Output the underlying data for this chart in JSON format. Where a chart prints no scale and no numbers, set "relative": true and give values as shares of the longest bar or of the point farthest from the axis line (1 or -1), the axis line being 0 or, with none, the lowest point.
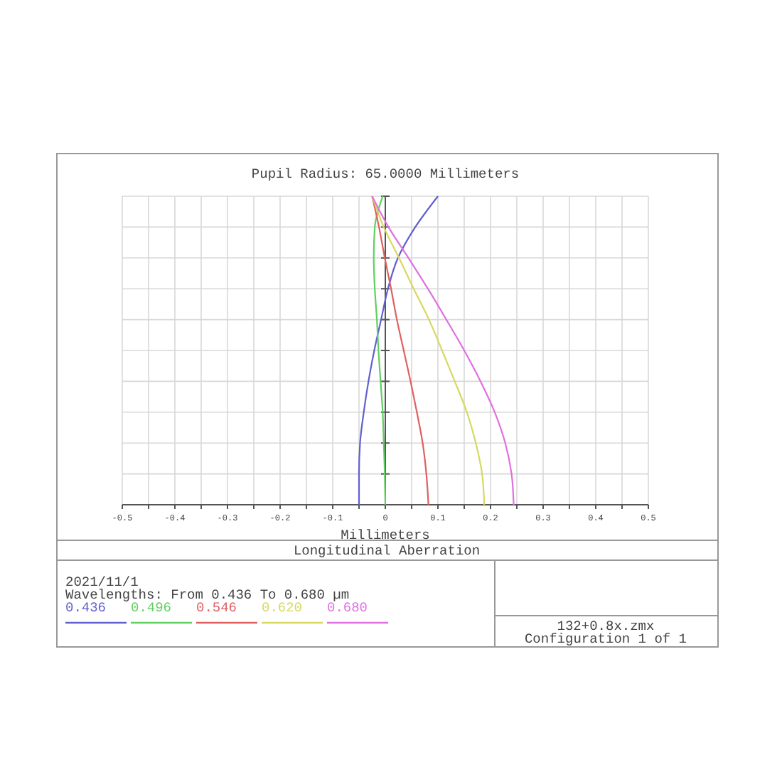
{
  "chart_data": {
    "type": "line",
    "title": "Longitudinal Aberration",
    "subtitle": "Pupil Radius: 65.0000 Millimeters",
    "xlabel": "Millimeters",
    "relative": true,
    "xlim": [
      -0.5,
      0.5
    ],
    "xticks": [
      -0.5,
      {
        "value": -0.45,
        "label": null
      },
      -0.4,
      {
        "value": -0.35,
        "label": null
      },
      -0.3,
      {
        "value": -0.25,
        "label": null
      },
      -0.2,
      {
        "value": -0.15,
        "label": null
      },
      -0.1,
      {
        "value": -0.05,
        "label": null
      },
      0,
      {
        "value": 0.05,
        "label": null
      },
      0.1,
      {
        "value": 0.15,
        "label": null
      },
      0.2,
      {
        "value": 0.25,
        "label": null
      },
      0.3,
      {
        "value": 0.35,
        "label": null
      },
      0.4,
      {
        "value": 0.45,
        "label": null
      },
      0.5
    ],
    "grid": true,
    "legend": "bottom left",
    "marker": "none",
    "line_style": "solid",
    "annotations": [
      "2021/11/1",
      "Wavelengths: From 0.436 To 0.680 µm",
      "132+0.8x.zmx",
      "Configuration 1 of 1"
    ],
    "series": [
      {
        "name": "0.436",
        "color": "#6060d0",
        "x": [
          -0.05,
          -0.05,
          -0.048,
          -0.041,
          -0.032,
          -0.021,
          -0.008,
          0.005,
          0.024,
          0.057,
          0.1
        ],
        "values": [
          0,
          0.1,
          0.2,
          0.3,
          0.4,
          0.5,
          0.6,
          0.7,
          0.8,
          0.9,
          1
        ]
      },
      {
        "name": "0.496",
        "color": "#60d060",
        "x": [
          0,
          -0.001,
          -0.003,
          -0.005,
          -0.009,
          -0.013,
          -0.016,
          -0.02,
          -0.022,
          -0.02,
          -0.005
        ],
        "values": [
          0,
          0.1,
          0.2,
          0.3,
          0.4,
          0.5,
          0.6,
          0.7,
          0.8,
          0.9,
          1
        ]
      },
      {
        "name": "0.546",
        "color": "#e06060",
        "x": [
          0.082,
          0.078,
          0.071,
          0.06,
          0.048,
          0.035,
          0.022,
          0.011,
          -0.001,
          -0.012,
          -0.025
        ],
        "values": [
          0,
          0.1,
          0.2,
          0.3,
          0.4,
          0.5,
          0.6,
          0.7,
          0.8,
          0.9,
          1
        ]
      },
      {
        "name": "0.620",
        "color": "#d8d860",
        "x": [
          0.188,
          0.184,
          0.172,
          0.155,
          0.132,
          0.108,
          0.083,
          0.054,
          0.026,
          -0.003,
          -0.025
        ],
        "values": [
          0,
          0.1,
          0.2,
          0.3,
          0.4,
          0.5,
          0.6,
          0.7,
          0.8,
          0.9,
          1
        ]
      },
      {
        "name": "0.680",
        "color": "#e070e0",
        "x": [
          0.244,
          0.24,
          0.228,
          0.208,
          0.181,
          0.15,
          0.116,
          0.081,
          0.044,
          0.006,
          -0.025
        ],
        "values": [
          0,
          0.1,
          0.2,
          0.3,
          0.4,
          0.5,
          0.6,
          0.7,
          0.8,
          0.9,
          1
        ]
      }
    ]
  }
}
